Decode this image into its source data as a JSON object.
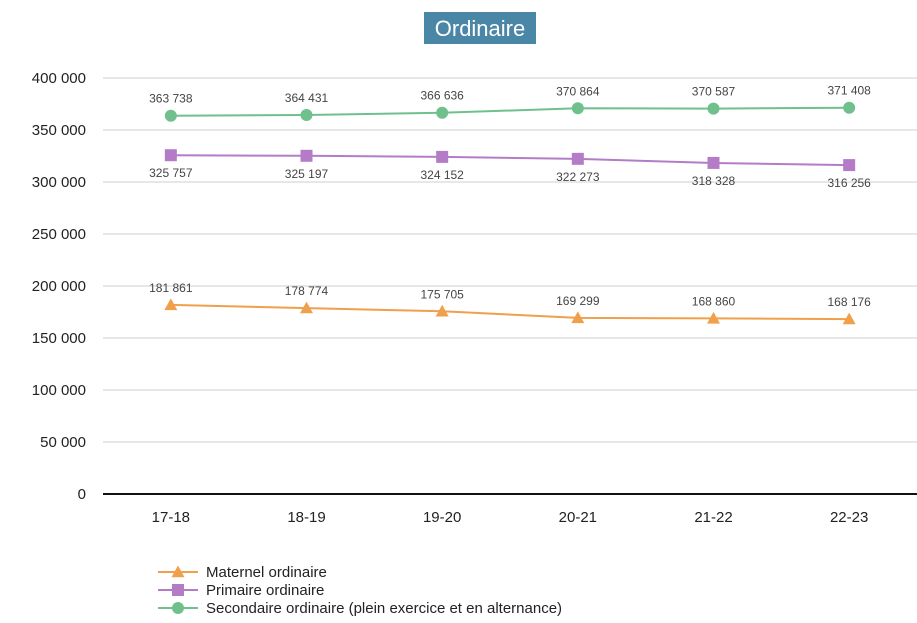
{
  "chart_data": {
    "type": "line",
    "title": "Ordinaire",
    "categories": [
      "17-18",
      "18-19",
      "19-20",
      "20-21",
      "21-22",
      "22-23"
    ],
    "ylim": [
      0,
      400000
    ],
    "yticks": [
      0,
      50000,
      100000,
      150000,
      200000,
      250000,
      300000,
      350000,
      400000
    ],
    "ytick_labels": [
      "0",
      "50 000",
      "100 000",
      "150 000",
      "200 000",
      "250 000",
      "300 000",
      "350 000",
      "400 000"
    ],
    "grid": true,
    "legend_position": "bottom",
    "series": [
      {
        "name": "Maternel ordinaire",
        "color": "#f0a04b",
        "marker": "triangle",
        "values": [
          181861,
          178774,
          175705,
          169299,
          168860,
          168176
        ],
        "labels": [
          "181 861",
          "178 774",
          "175 705",
          "169 299",
          "168 860",
          "168 176"
        ]
      },
      {
        "name": "Primaire ordinaire",
        "color": "#b47cc7",
        "marker": "square",
        "values": [
          325757,
          325197,
          324152,
          322273,
          318328,
          316256
        ],
        "labels": [
          "325 757",
          "325 197",
          "324 152",
          "322 273",
          "318 328",
          "316 256"
        ]
      },
      {
        "name": "Secondaire ordinaire (plein exercice et en alternance)",
        "color": "#6fc08d",
        "marker": "circle",
        "values": [
          363738,
          364431,
          366636,
          370864,
          370587,
          371408
        ],
        "labels": [
          "363 738",
          "364 431",
          "366 636",
          "370 864",
          "370 587",
          "371 408"
        ]
      }
    ]
  }
}
